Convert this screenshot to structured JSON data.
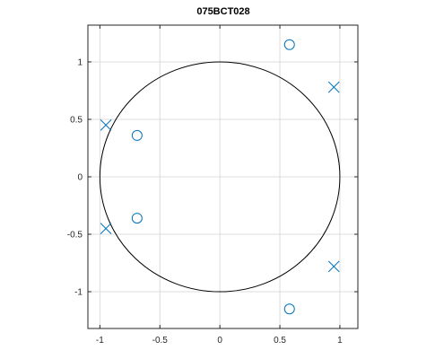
{
  "chart_data": {
    "type": "scatter",
    "title": "075BCT028",
    "xlabel": "",
    "ylabel": "",
    "xlim": [
      -1.1,
      1.15
    ],
    "ylim": [
      -1.32,
      1.32
    ],
    "grid": true,
    "box": true,
    "aspect": "equal",
    "x_ticks": [
      -1,
      -0.5,
      0,
      0.5,
      1
    ],
    "x_tick_labels": [
      "-1",
      "-0.5",
      "0",
      "0.5",
      "1"
    ],
    "y_ticks": [
      1,
      0.5,
      0,
      -0.5,
      -1
    ],
    "y_tick_labels": [
      "1",
      "0.5",
      "0",
      "-0.5",
      "-1"
    ],
    "unit_circle": {
      "center": [
        0,
        0
      ],
      "radius": 1,
      "color": "#000000"
    },
    "marker_color": "#0072bd",
    "zeros": {
      "marker": "o",
      "points": [
        {
          "x": 0.58,
          "y": 1.15
        },
        {
          "x": -0.69,
          "y": 0.36
        },
        {
          "x": -0.69,
          "y": -0.36
        },
        {
          "x": 0.58,
          "y": -1.15
        }
      ]
    },
    "poles": {
      "marker": "x",
      "points": [
        {
          "x": 0.95,
          "y": 0.78
        },
        {
          "x": -0.95,
          "y": 0.45
        },
        {
          "x": -0.95,
          "y": -0.45
        },
        {
          "x": 0.95,
          "y": -0.78
        }
      ]
    }
  }
}
